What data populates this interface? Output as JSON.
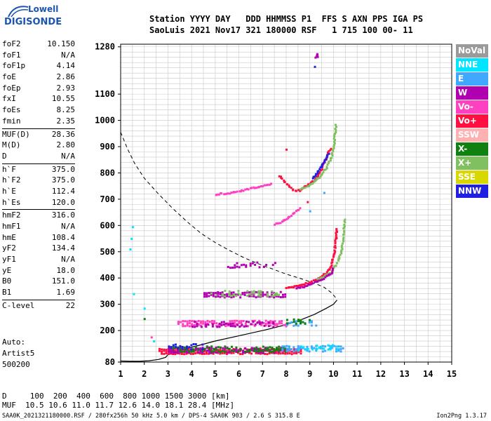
{
  "logo": {
    "top": "Lowell",
    "main": "DIGISONDE"
  },
  "header": {
    "row1": "Station YYYY DAY   DDD HHMMSS P1  FFS S AXN PPS IGA PS",
    "row2": "SaoLuis 2021 Nov17 321 180000 RSF   1 715 100 00- 11"
  },
  "params": {
    "group1": [
      {
        "label": "foF2",
        "value": "10.150"
      },
      {
        "label": "foF1",
        "value": "N/A"
      },
      {
        "label": "foF1p",
        "value": "4.14"
      },
      {
        "label": "foE",
        "value": "2.86"
      },
      {
        "label": "foEp",
        "value": "2.93"
      },
      {
        "label": "fxI",
        "value": "10.55"
      },
      {
        "label": "foEs",
        "value": "8.25"
      },
      {
        "label": "fmin",
        "value": "2.35"
      }
    ],
    "group2": [
      {
        "label": "MUF(D)",
        "value": "28.36"
      },
      {
        "label": "M(D)",
        "value": "2.80"
      },
      {
        "label": "D",
        "value": "N/A"
      }
    ],
    "group3": [
      {
        "label": "h`F",
        "value": "375.0"
      },
      {
        "label": "h`F2",
        "value": "375.0"
      },
      {
        "label": "h`E",
        "value": "112.4"
      },
      {
        "label": "h`Es",
        "value": "120.0"
      }
    ],
    "group4": [
      {
        "label": "hmF2",
        "value": "316.0"
      },
      {
        "label": "hmF1",
        "value": "N/A"
      },
      {
        "label": "hmE",
        "value": "108.4"
      },
      {
        "label": "yF2",
        "value": "134.4"
      },
      {
        "label": "yF1",
        "value": "N/A"
      },
      {
        "label": "yE",
        "value": "18.0"
      },
      {
        "label": "B0",
        "value": "151.0"
      },
      {
        "label": "B1",
        "value": "1.69"
      }
    ],
    "group5": [
      {
        "label": "C-level",
        "value": "22"
      }
    ]
  },
  "auto": {
    "line1": "Auto:",
    "line2": "Artist5",
    "line3": "500200"
  },
  "legend": [
    {
      "label": "NoVal",
      "color": "#9a9a9a"
    },
    {
      "label": "NNE",
      "color": "#00e5ff"
    },
    {
      "label": "E",
      "color": "#40a8ff"
    },
    {
      "label": "W",
      "color": "#b000b0"
    },
    {
      "label": "Vo-",
      "color": "#ff40c0"
    },
    {
      "label": "Vo+",
      "color": "#ff1040"
    },
    {
      "label": "SSW",
      "color": "#ffb0b0"
    },
    {
      "label": "X-",
      "color": "#108010"
    },
    {
      "label": "X+",
      "color": "#80c060"
    },
    {
      "label": "SSE",
      "color": "#d8d800"
    },
    {
      "label": "NNW",
      "color": "#2020e0"
    }
  ],
  "footer": {
    "dist": "D     100  200  400  600  800 1000 1500 3000 [km]",
    "muf": "MUF  10.5 10.6 11.0 11.7 12.6 14.0 18.1 28.4 [MHz]",
    "file": "SAA0K_2021321180000.RSF / 280fx256h 50 kHz 5.0 km / DPS-4 SAA0K 903 / 2.6 S 315.8 E",
    "version": "Ion2Png 1.3.17"
  },
  "chart_data": {
    "type": "scatter",
    "xlim": [
      1,
      15
    ],
    "ylim": [
      80,
      1290
    ],
    "grid": true,
    "x_ticks": [
      "1",
      "2",
      "3",
      "4",
      "5",
      "6",
      "7",
      "8",
      "9",
      "10",
      "11",
      "12",
      "13",
      "14",
      "15"
    ],
    "y_ticks": [
      "80",
      "200",
      "300",
      "400",
      "500",
      "600",
      "700",
      "800",
      "900",
      "1000",
      "1100",
      "1280"
    ],
    "y_tick_values": [
      80,
      200,
      300,
      400,
      500,
      600,
      700,
      800,
      900,
      1000,
      1100,
      1280
    ],
    "profile_dashed": [
      [
        1.0,
        955
      ],
      [
        1.3,
        890
      ],
      [
        1.6,
        835
      ],
      [
        2.0,
        780
      ],
      [
        2.6,
        720
      ],
      [
        3.2,
        665
      ],
      [
        3.8,
        615
      ],
      [
        4.4,
        570
      ],
      [
        5.0,
        535
      ],
      [
        5.6,
        505
      ],
      [
        6.2,
        478
      ],
      [
        6.8,
        455
      ],
      [
        7.4,
        435
      ],
      [
        8.0,
        415
      ],
      [
        8.6,
        398
      ],
      [
        9.2,
        380
      ],
      [
        9.6,
        365
      ],
      [
        9.9,
        345
      ],
      [
        10.05,
        330
      ],
      [
        10.15,
        318
      ]
    ],
    "profile_solid": [
      [
        1.0,
        84
      ],
      [
        1.4,
        83
      ],
      [
        1.8,
        83
      ],
      [
        2.2,
        85
      ],
      [
        2.6,
        90
      ],
      [
        2.9,
        98
      ],
      [
        3.0,
        108
      ],
      [
        3.4,
        120
      ],
      [
        4.0,
        136
      ],
      [
        5.0,
        160
      ],
      [
        6.0,
        180
      ],
      [
        7.0,
        200
      ],
      [
        8.0,
        222
      ],
      [
        8.6,
        240
      ],
      [
        9.2,
        262
      ],
      [
        9.7,
        285
      ],
      [
        10.0,
        300
      ],
      [
        10.15,
        316
      ]
    ],
    "traces": [
      {
        "mode": "Vo+",
        "points": [
          [
            8.0,
            365
          ],
          [
            8.3,
            368
          ],
          [
            8.6,
            373
          ],
          [
            8.9,
            382
          ],
          [
            9.2,
            392
          ],
          [
            9.4,
            402
          ],
          [
            9.6,
            414
          ],
          [
            9.8,
            432
          ],
          [
            9.9,
            450
          ],
          [
            10.0,
            480
          ],
          [
            10.05,
            520
          ],
          [
            10.1,
            560
          ],
          [
            10.12,
            595
          ]
        ]
      },
      {
        "mode": "X+",
        "points": [
          [
            9.3,
            395
          ],
          [
            9.6,
            408
          ],
          [
            9.9,
            425
          ],
          [
            10.1,
            450
          ],
          [
            10.3,
            495
          ],
          [
            10.4,
            545
          ],
          [
            10.45,
            600
          ],
          [
            10.5,
            630
          ]
        ]
      },
      {
        "mode": "W",
        "points": [
          [
            8.4,
            362
          ],
          [
            8.8,
            370
          ],
          [
            9.2,
            385
          ],
          [
            9.6,
            400
          ],
          [
            9.9,
            420
          ],
          [
            10.0,
            440
          ]
        ]
      },
      {
        "mode": "Vo+",
        "points": [
          [
            7.7,
            790
          ],
          [
            8.0,
            760
          ],
          [
            8.3,
            735
          ],
          [
            8.6,
            735
          ],
          [
            8.9,
            755
          ],
          [
            9.2,
            775
          ],
          [
            9.4,
            800
          ],
          [
            9.5,
            815
          ],
          [
            9.6,
            840
          ],
          [
            9.7,
            860
          ],
          [
            9.8,
            885
          ],
          [
            9.9,
            900
          ]
        ]
      },
      {
        "mode": "X+",
        "points": [
          [
            8.6,
            740
          ],
          [
            9.0,
            755
          ],
          [
            9.4,
            785
          ],
          [
            9.7,
            820
          ],
          [
            9.9,
            860
          ],
          [
            10.0,
            900
          ],
          [
            10.05,
            945
          ],
          [
            10.1,
            990
          ]
        ]
      },
      {
        "mode": "NNW",
        "points": [
          [
            9.1,
            780
          ],
          [
            9.3,
            800
          ],
          [
            9.5,
            830
          ],
          [
            9.7,
            860
          ],
          [
            9.8,
            880
          ]
        ]
      },
      {
        "mode": "Vo-",
        "points": [
          [
            7.5,
            605
          ],
          [
            7.8,
            615
          ],
          [
            8.0,
            625
          ],
          [
            8.2,
            640
          ],
          [
            8.4,
            655
          ],
          [
            8.6,
            668
          ]
        ]
      },
      {
        "mode": "Vo-",
        "points": [
          [
            5.0,
            720
          ],
          [
            5.6,
            725
          ],
          [
            6.2,
            735
          ],
          [
            6.8,
            748
          ],
          [
            7.4,
            760
          ]
        ]
      },
      {
        "mode": "W",
        "points": [
          [
            9.25,
            1240
          ],
          [
            9.3,
            1255
          ],
          [
            9.35,
            1240
          ]
        ]
      },
      {
        "mode": "NNW",
        "points": [
          [
            9.2,
            1205
          ]
        ]
      },
      {
        "mode": "Vo+",
        "points": [
          [
            8.0,
            890
          ]
        ]
      }
    ],
    "layers": [
      {
        "mode": "W",
        "x0": 5.5,
        "x1": 7.5,
        "y": 450,
        "dens": 0.35
      },
      {
        "mode": "W",
        "x0": 4.5,
        "x1": 8.0,
        "y": 338,
        "dens": 0.7
      },
      {
        "mode": "X+",
        "x0": 4.8,
        "x1": 7.8,
        "y": 342,
        "dens": 0.35
      },
      {
        "mode": "Vo-",
        "x0": 3.4,
        "x1": 8.0,
        "y": 228,
        "dens": 0.7
      },
      {
        "mode": "W",
        "x0": 4.0,
        "x1": 7.5,
        "y": 225,
        "dens": 0.4
      },
      {
        "mode": "E",
        "x0": 7.8,
        "x1": 9.4,
        "y": 230,
        "dens": 0.35
      },
      {
        "mode": "X-",
        "x0": 8.0,
        "x1": 9.0,
        "y": 235,
        "dens": 0.3
      },
      {
        "mode": "Vo+",
        "x0": 2.6,
        "x1": 8.6,
        "y": 122,
        "dens": 0.85
      },
      {
        "mode": "W",
        "x0": 3.0,
        "x1": 8.0,
        "y": 126,
        "dens": 0.6
      },
      {
        "mode": "X-",
        "x0": 3.0,
        "x1": 8.0,
        "y": 130,
        "dens": 0.45
      },
      {
        "mode": "NNW",
        "x0": 3.0,
        "x1": 4.6,
        "y": 140,
        "dens": 0.45
      },
      {
        "mode": "E",
        "x0": 7.8,
        "x1": 10.4,
        "y": 132,
        "dens": 0.7
      },
      {
        "mode": "NNE",
        "x0": 8.5,
        "x1": 10.2,
        "y": 138,
        "dens": 0.35
      }
    ],
    "scatter_points": [
      {
        "mode": "NNE",
        "x": 1.5,
        "y": 595
      },
      {
        "mode": "NNE",
        "x": 1.45,
        "y": 550
      },
      {
        "mode": "NNE",
        "x": 1.4,
        "y": 510
      },
      {
        "mode": "NNE",
        "x": 1.55,
        "y": 340
      },
      {
        "mode": "NNE",
        "x": 2.0,
        "y": 285
      },
      {
        "mode": "X-",
        "x": 2.0,
        "y": 245
      },
      {
        "mode": "Vo-",
        "x": 2.3,
        "y": 175
      },
      {
        "mode": "NNE",
        "x": 2.4,
        "y": 160
      },
      {
        "mode": "E",
        "x": 9.6,
        "y": 725
      },
      {
        "mode": "E",
        "x": 9.0,
        "y": 655
      },
      {
        "mode": "Vo+",
        "x": 8.9,
        "y": 690
      }
    ]
  }
}
